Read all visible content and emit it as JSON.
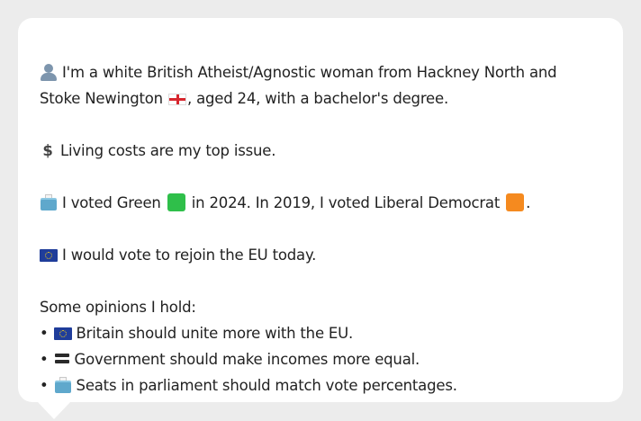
{
  "profile": {
    "line1_part1": "I'm a white British Atheist/Agnostic woman from Hackney North and",
    "line1_part2": "Stoke Newington",
    "line1_part3": ", aged 24, with a bachelor's degree.",
    "icons": [
      "person-icon",
      "england-flag-icon"
    ]
  },
  "issue": {
    "text": "Living costs are my top issue.",
    "icon": "dollar-icon"
  },
  "votes": {
    "part1": "I voted Green",
    "part2": "in 2024. In 2019, I voted Liberal Democrat",
    "part3": ".",
    "green_color": "#2fbf4a",
    "libdem_color": "#f58a1f",
    "icon": "ballot-box-icon"
  },
  "eu": {
    "text": "I would vote to rejoin the EU today.",
    "icon": "eu-flag-icon"
  },
  "opinions": {
    "title": "Some opinions I hold:",
    "bullet": "•",
    "items": [
      {
        "icon": "eu-flag-icon",
        "text": "Britain should unite more with the EU."
      },
      {
        "icon": "equals-icon",
        "text": "Government should make incomes more equal."
      },
      {
        "icon": "ballot-box-icon",
        "text": "Seats in parliament should match vote percentages."
      }
    ]
  }
}
